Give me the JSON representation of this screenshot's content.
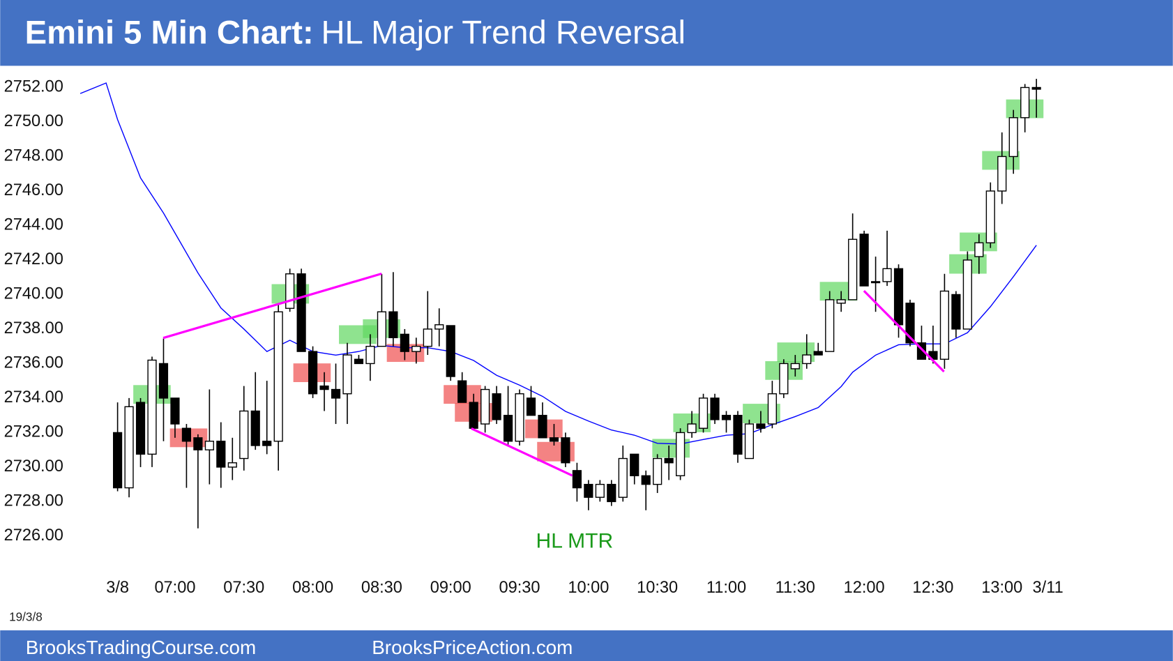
{
  "chart_data": {
    "type": "candlestick",
    "title": "Emini 5 Min Chart:",
    "subtitle": "HL Major Trend Reversal",
    "annotation": "HL MTR",
    "date_label": "19/3/8",
    "footer": [
      "BrooksTradingCourse.com",
      "BrooksPriceAction.com"
    ],
    "up_color": "#ffffff",
    "down_color": "#000000",
    "x": [
      0,
      1,
      2,
      3,
      4,
      5,
      6,
      7,
      8,
      9,
      10,
      11,
      12,
      13,
      14,
      15,
      16,
      17,
      18,
      19,
      20,
      21,
      22,
      23,
      24,
      25,
      26,
      27,
      28,
      29,
      30,
      31,
      32,
      33,
      34,
      35,
      36,
      37,
      38,
      39,
      40,
      41,
      42,
      43,
      44,
      45,
      46,
      47,
      48,
      49,
      50,
      51,
      52,
      53,
      54,
      55,
      56,
      57,
      58,
      59,
      60,
      61,
      62,
      63,
      64,
      65,
      66,
      67,
      68,
      69,
      70,
      71,
      72,
      73,
      74,
      75,
      76,
      77,
      78,
      79,
      80
    ],
    "open": [
      2732.0,
      2728.8,
      2733.75,
      2730.75,
      2736.0,
      2734.0,
      2732.25,
      2731.7,
      2731.0,
      2731.5,
      2730.0,
      2730.5,
      2733.25,
      2731.5,
      2731.5,
      2739.2,
      2741.2,
      2736.7,
      2734.7,
      2734.5,
      2734.25,
      2736.25,
      2736.0,
      2737.0,
      2739.0,
      2737.7,
      2736.7,
      2737.0,
      2738.0,
      2738.2,
      2735.0,
      2733.75,
      2732.5,
      2734.25,
      2733.0,
      2731.5,
      2734.0,
      2733.0,
      2731.7,
      2731.7,
      2729.8,
      2729.0,
      2728.25,
      2729.0,
      2728.25,
      2730.75,
      2729.5,
      2729.0,
      2730.5,
      2729.5,
      2732.0,
      2732.25,
      2734.0,
      2733.0,
      2733.0,
      2730.5,
      2732.5,
      2732.5,
      2734.25,
      2735.7,
      2736.0,
      2736.7,
      2736.7,
      2739.5,
      2739.7,
      2743.5,
      2740.75,
      2740.75,
      2741.5,
      2739.5,
      2737.2,
      2736.7,
      2736.25,
      2740.0,
      2738.0,
      2742.2,
      2743.0,
      2746.0,
      2748.0,
      2750.25,
      2752.0
    ],
    "high": [
      2733.75,
      2734.0,
      2734.0,
      2736.4,
      2737.45,
      2734.0,
      2732.5,
      2731.9,
      2734.5,
      2732.6,
      2731.7,
      2734.7,
      2735.5,
      2735.0,
      2739.4,
      2741.5,
      2741.5,
      2737.0,
      2735.5,
      2736.0,
      2737.2,
      2736.5,
      2737.7,
      2741.2,
      2741.3,
      2738.0,
      2737.5,
      2740.2,
      2739.2,
      2738.2,
      2735.5,
      2734.25,
      2734.7,
      2734.7,
      2734.7,
      2734.5,
      2734.7,
      2733.75,
      2732.5,
      2732.0,
      2730.25,
      2729.25,
      2729.25,
      2729.25,
      2731.25,
      2730.75,
      2729.8,
      2730.75,
      2731.25,
      2732.25,
      2733.25,
      2734.25,
      2734.25,
      2733.25,
      2733.25,
      2732.75,
      2733.25,
      2735.0,
      2736.25,
      2736.5,
      2737.7,
      2737.2,
      2740.2,
      2740.2,
      2744.7,
      2743.7,
      2742.2,
      2743.7,
      2741.75,
      2739.7,
      2738.2,
      2738.2,
      2741.2,
      2740.2,
      2742.5,
      2743.5,
      2746.5,
      2749.4,
      2750.7,
      2752.2,
      2752.5
    ],
    "low": [
      2728.6,
      2728.25,
      2730.0,
      2730.0,
      2731.5,
      2731.7,
      2728.8,
      2726.45,
      2729.0,
      2728.8,
      2729.25,
      2729.8,
      2731.0,
      2730.75,
      2729.8,
      2739.0,
      2736.7,
      2734.0,
      2733.25,
      2732.5,
      2732.5,
      2736.0,
      2735.0,
      2737.0,
      2737.0,
      2736.2,
      2736.0,
      2736.5,
      2737.0,
      2735.0,
      2733.75,
      2732.25,
      2732.0,
      2732.5,
      2731.25,
      2731.25,
      2733.0,
      2731.7,
      2731.25,
      2730.0,
      2728.0,
      2727.5,
      2728.0,
      2727.75,
      2728.0,
      2729.0,
      2727.5,
      2728.5,
      2729.25,
      2729.25,
      2731.7,
      2732.0,
      2732.5,
      2732.0,
      2730.25,
      2730.5,
      2732.0,
      2732.25,
      2734.0,
      2735.25,
      2735.7,
      2736.5,
      2736.7,
      2739.0,
      2739.7,
      2740.5,
      2739.0,
      2740.5,
      2737.5,
      2737.0,
      2736.25,
      2736.0,
      2735.7,
      2737.5,
      2738.0,
      2741.2,
      2742.7,
      2745.25,
      2747.0,
      2749.4,
      2750.25
    ],
    "close": [
      2728.8,
      2733.5,
      2730.75,
      2736.2,
      2734.0,
      2732.5,
      2731.5,
      2731.0,
      2731.5,
      2730.0,
      2730.25,
      2733.25,
      2731.25,
      2731.25,
      2739.0,
      2741.2,
      2736.7,
      2734.25,
      2734.5,
      2734.0,
      2736.5,
      2736.0,
      2737.0,
      2739.0,
      2737.5,
      2736.7,
      2737.0,
      2738.0,
      2738.25,
      2735.25,
      2733.75,
      2732.25,
      2734.5,
      2732.75,
      2731.5,
      2734.25,
      2733.0,
      2731.7,
      2731.5,
      2730.25,
      2728.8,
      2728.25,
      2729.0,
      2728.0,
      2730.5,
      2729.5,
      2729.0,
      2730.5,
      2730.25,
      2732.0,
      2732.5,
      2734.0,
      2732.75,
      2732.75,
      2730.75,
      2732.5,
      2732.25,
      2734.25,
      2736.0,
      2736.0,
      2736.5,
      2736.5,
      2739.7,
      2739.7,
      2743.2,
      2740.5,
      2740.7,
      2741.5,
      2738.25,
      2737.2,
      2736.25,
      2736.25,
      2740.2,
      2738.0,
      2742.0,
      2743.0,
      2746.0,
      2748.0,
      2750.25,
      2752.0,
      2751.9
    ],
    "ema": {
      "color": "#0000ff",
      "x": [
        -3.25,
        -1,
        0,
        2,
        4,
        7,
        9,
        11,
        13,
        15,
        17,
        19,
        21,
        23,
        25,
        27,
        29,
        31,
        33,
        35,
        37,
        39,
        41,
        43,
        45,
        47,
        49,
        51,
        53,
        55,
        57,
        59,
        61,
        63,
        64,
        66,
        68,
        70,
        72,
        74,
        76,
        78,
        80
      ],
      "values": [
        2751.65,
        2752.26,
        2750.14,
        2746.76,
        2744.72,
        2741.25,
        2739.22,
        2738.0,
        2736.7,
        2737.35,
        2736.7,
        2736.49,
        2736.7,
        2737.05,
        2736.92,
        2736.92,
        2736.7,
        2736.18,
        2735.32,
        2734.75,
        2734.1,
        2733.23,
        2732.67,
        2732.15,
        2731.85,
        2731.38,
        2731.34,
        2731.6,
        2731.85,
        2731.94,
        2732.46,
        2732.93,
        2733.45,
        2734.67,
        2735.5,
        2736.49,
        2737.09,
        2737.14,
        2737.14,
        2737.79,
        2739.3,
        2741.04,
        2742.86
      ]
    },
    "xlim": [
      -4,
      84
    ],
    "ylim": [
      2726,
      2752
    ],
    "xticks": [
      {
        "value": 0,
        "label": "3/8"
      },
      {
        "value": 5,
        "label": "07:00"
      },
      {
        "value": 11,
        "label": "07:30"
      },
      {
        "value": 17,
        "label": "08:00"
      },
      {
        "value": 23,
        "label": "08:30"
      },
      {
        "value": 29,
        "label": "09:00"
      },
      {
        "value": 35,
        "label": "09:30"
      },
      {
        "value": 41,
        "label": "10:00"
      },
      {
        "value": 47,
        "label": "10:30"
      },
      {
        "value": 53,
        "label": "11:00"
      },
      {
        "value": 59,
        "label": "11:30"
      },
      {
        "value": 65,
        "label": "12:00"
      },
      {
        "value": 71,
        "label": "12:30"
      },
      {
        "value": 77,
        "label": "13:00"
      },
      {
        "value": 81,
        "label": "3/11"
      }
    ],
    "yticks": [
      {
        "value": 2726,
        "label": "2726.00"
      },
      {
        "value": 2728,
        "label": "2728.00"
      },
      {
        "value": 2730,
        "label": "2730.00"
      },
      {
        "value": 2732,
        "label": "2732.00"
      },
      {
        "value": 2734,
        "label": "2734.00"
      },
      {
        "value": 2736,
        "label": "2736.00"
      },
      {
        "value": 2738,
        "label": "2738.00"
      },
      {
        "value": 2740,
        "label": "2740.00"
      },
      {
        "value": 2742,
        "label": "2742.00"
      },
      {
        "value": 2744,
        "label": "2744.00"
      },
      {
        "value": 2746,
        "label": "2746.00"
      },
      {
        "value": 2748,
        "label": "2748.00"
      },
      {
        "value": 2750,
        "label": "2750.00"
      },
      {
        "value": 2752,
        "label": "2752.00"
      }
    ],
    "grid": false
  }
}
